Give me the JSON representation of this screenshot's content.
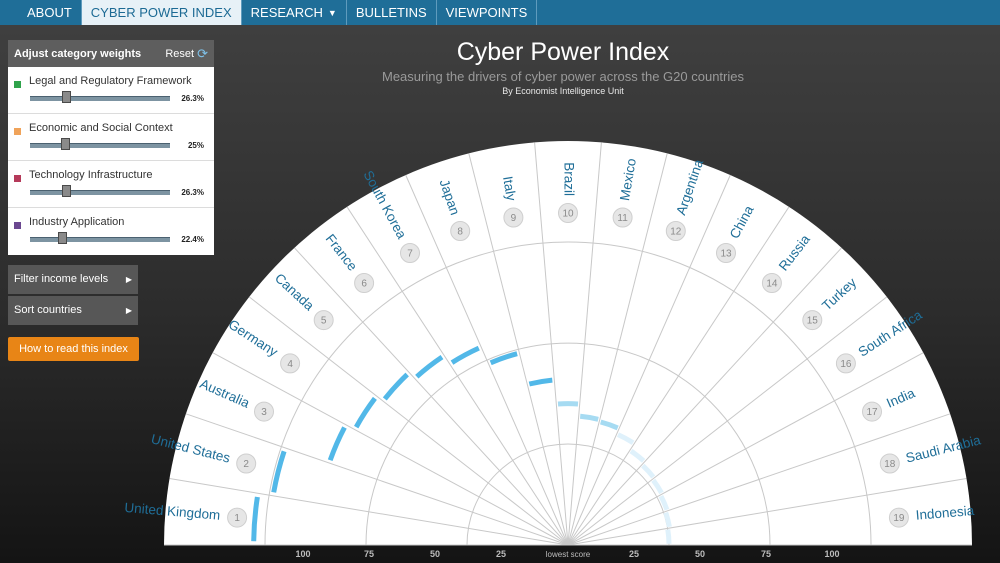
{
  "nav": {
    "about": "ABOUT",
    "index": "CYBER POWER INDEX",
    "research": "RESEARCH",
    "bulletins": "BULLETINS",
    "viewpoints": "VIEWPOINTS"
  },
  "weights_panel": {
    "title": "Adjust category weights",
    "reset": "Reset",
    "items": [
      {
        "label": "Legal and Regulatory Framework",
        "value": "26.3%",
        "color": "#2fa34b"
      },
      {
        "label": "Economic and Social Context",
        "value": "25%",
        "color": "#f0a35a"
      },
      {
        "label": "Technology Infrastructure",
        "value": "26.3%",
        "color": "#b53a5a"
      },
      {
        "label": "Industry Application",
        "value": "22.4%",
        "color": "#6b4890"
      }
    ]
  },
  "filter_income": "Filter income levels",
  "sort_countries": "Sort countries",
  "how_to_read": "How to read this index",
  "header": {
    "title": "Cyber Power Index",
    "subtitle": "Measuring the drivers of cyber power across the G20 countries",
    "byline": "By Economist Intelligence Unit"
  },
  "chart_data": {
    "type": "radial-bar",
    "countries": [
      {
        "rank": "1",
        "name": "United Kingdom",
        "score": 77.8
      },
      {
        "rank": "2",
        "name": "United States",
        "score": 74.0
      },
      {
        "rank": "3",
        "name": "Australia",
        "score": 62.5
      },
      {
        "rank": "4",
        "name": "Germany",
        "score": 60.0
      },
      {
        "rank": "5",
        "name": "Canada",
        "score": 58.0
      },
      {
        "rank": "6",
        "name": "France",
        "score": 56.0
      },
      {
        "rank": "7",
        "name": "South Korea",
        "score": 53.5
      },
      {
        "rank": "8",
        "name": "Japan",
        "score": 49.0
      },
      {
        "rank": "9",
        "name": "Italy",
        "score": 41.0
      },
      {
        "rank": "10",
        "name": "Brazil",
        "score": 35.0
      },
      {
        "rank": "11",
        "name": "Mexico",
        "score": 32.0
      },
      {
        "rank": "12",
        "name": "Argentina",
        "score": 31.5
      },
      {
        "rank": "13",
        "name": "China",
        "score": 30.0
      },
      {
        "rank": "14",
        "name": "Russia",
        "score": 28.0
      },
      {
        "rank": "15",
        "name": "Turkey",
        "score": 27.0
      },
      {
        "rank": "16",
        "name": "South Africa",
        "score": 26.5
      },
      {
        "rank": "17",
        "name": "India",
        "score": 26.0
      },
      {
        "rank": "18",
        "name": "Saudi Arabia",
        "score": 25.5
      },
      {
        "rank": "19",
        "name": "Indonesia",
        "score": 25.0
      }
    ],
    "axis_ticks_left": [
      "100",
      "75",
      "50",
      "25"
    ],
    "axis_center": "lowest score",
    "axis_ticks_right": [
      "25",
      "50",
      "75",
      "100"
    ],
    "range": [
      0,
      100
    ],
    "bar_colors": [
      "#52b8e8",
      "#dff1fb"
    ],
    "label_color": "#1f6e98"
  }
}
